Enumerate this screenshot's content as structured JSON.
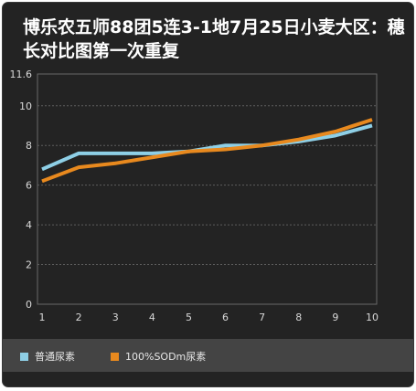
{
  "chart_data": {
    "type": "line",
    "title": "博乐农五师88团5连3-1地7月25日小麦大区：穗长对比图第一次重复",
    "categories": [
      "1",
      "2",
      "3",
      "4",
      "5",
      "6",
      "7",
      "8",
      "9",
      "10"
    ],
    "series": [
      {
        "name": "普通尿素",
        "color": "#8ecfe6",
        "values": [
          6.8,
          7.6,
          7.6,
          7.6,
          7.7,
          8.0,
          8.0,
          8.2,
          8.5,
          9.0
        ]
      },
      {
        "name": "100%SODm尿素",
        "color": "#e8891e",
        "values": [
          6.2,
          6.9,
          7.1,
          7.4,
          7.7,
          7.8,
          8.0,
          8.3,
          8.7,
          9.3
        ]
      }
    ],
    "y_ticks": [
      "0",
      "2",
      "4",
      "6",
      "8",
      "10",
      "11.6"
    ],
    "ylim": [
      0,
      11.6
    ],
    "grid": "horizontal dashed",
    "legend_position": "bottom"
  }
}
